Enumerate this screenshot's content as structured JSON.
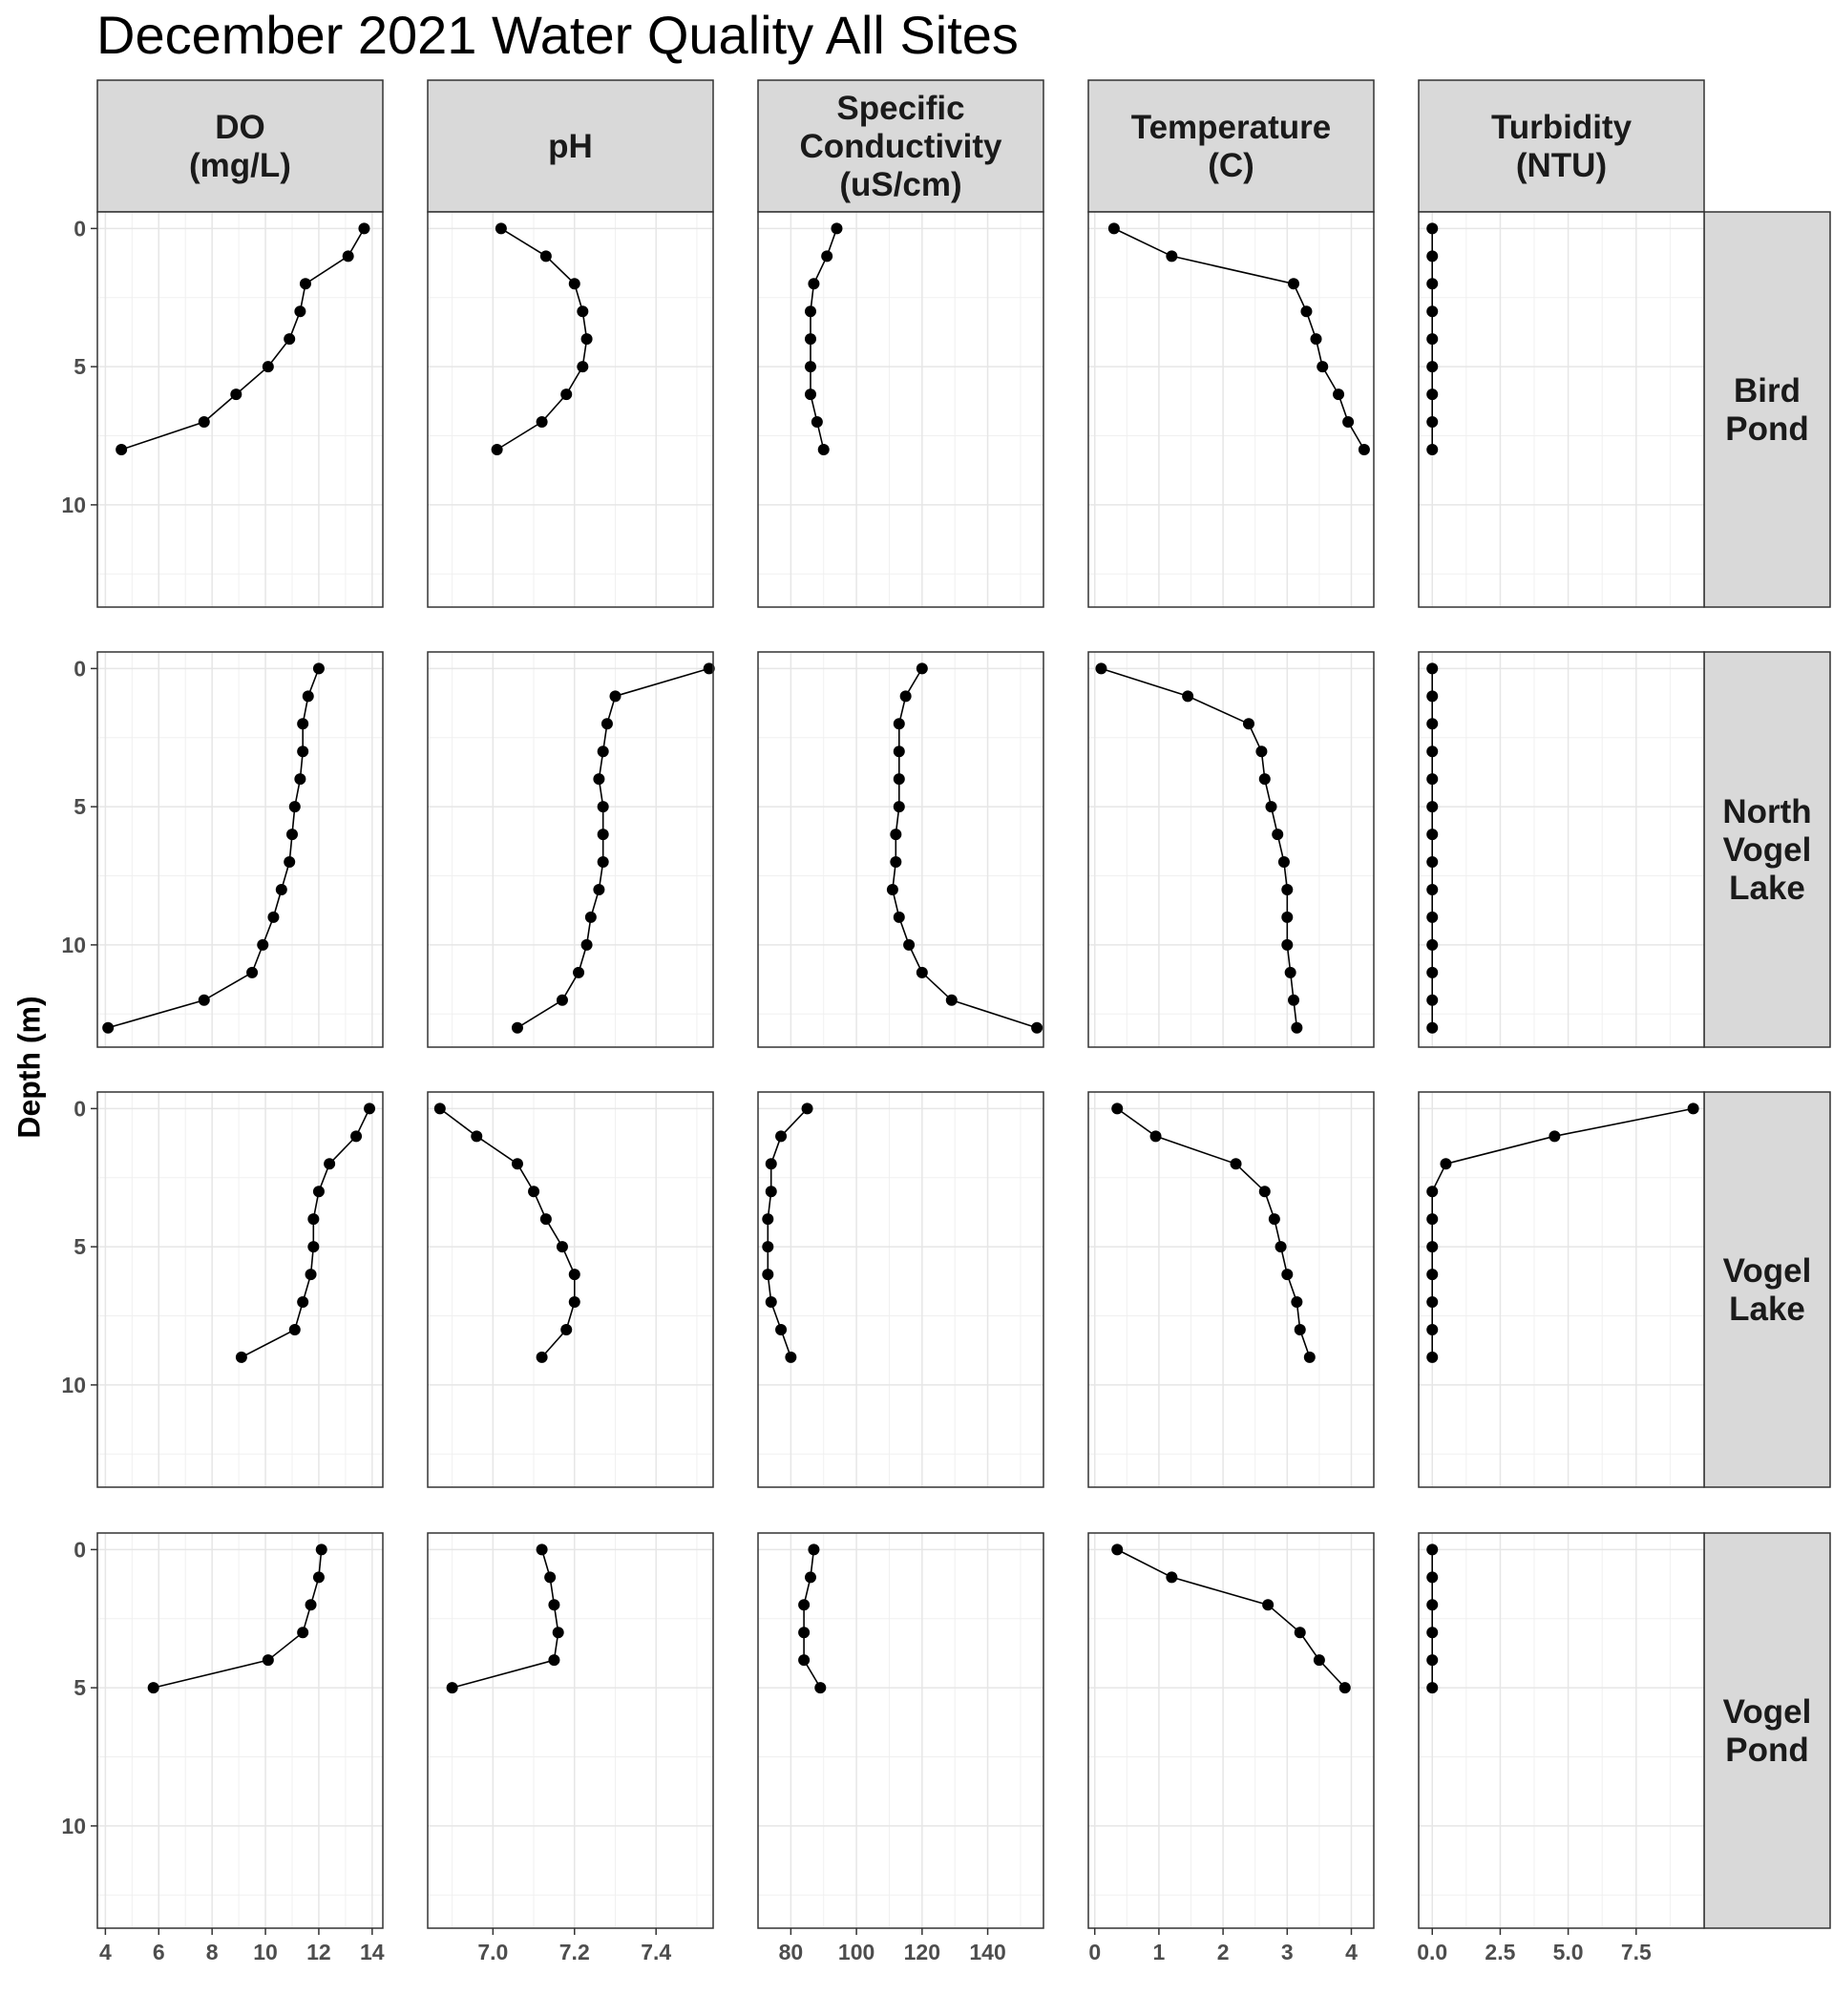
{
  "title": "December 2021 Water Quality All Sites",
  "ylabel": "Depth (m)",
  "chart_data": {
    "type": "line",
    "facet_layout": "grid",
    "markers": true,
    "grid": true,
    "y_reversed": true,
    "ylim": [
      -0.6,
      13.7
    ],
    "y_ticks": [
      0,
      5,
      10
    ],
    "columns": [
      {
        "label": "DO\n(mg/L)",
        "xlim": [
          3.7,
          14.4
        ],
        "x_ticks": [
          4,
          6,
          8,
          10,
          12,
          14
        ],
        "x_tick_labels": [
          "4",
          "6",
          "8",
          "10",
          "12",
          "14"
        ]
      },
      {
        "label": "pH",
        "xlim": [
          6.84,
          7.54
        ],
        "x_ticks": [
          7.0,
          7.2,
          7.4
        ],
        "x_tick_labels": [
          "7.0",
          "7.2",
          "7.4"
        ]
      },
      {
        "label": "Specific\nConductivity\n(uS/cm)",
        "xlim": [
          70,
          157
        ],
        "x_ticks": [
          80,
          100,
          120,
          140
        ],
        "x_tick_labels": [
          "80",
          "100",
          "120",
          "140"
        ]
      },
      {
        "label": "Temperature\n(C)",
        "xlim": [
          -0.1,
          4.35
        ],
        "x_ticks": [
          0,
          1,
          2,
          3,
          4
        ],
        "x_tick_labels": [
          "0",
          "1",
          "2",
          "3",
          "4"
        ]
      },
      {
        "label": "Turbidity\n(NTU)",
        "xlim": [
          -0.5,
          10.0
        ],
        "x_ticks": [
          0,
          2.5,
          5.0,
          7.5
        ],
        "x_tick_labels": [
          "0.0",
          "2.5",
          "5.0",
          "7.5"
        ]
      }
    ],
    "rows": [
      {
        "label": "Bird\nPond"
      },
      {
        "label": "North\nVogel\nLake"
      },
      {
        "label": "Vogel\nLake"
      },
      {
        "label": "Vogel\nPond"
      }
    ],
    "panels": [
      [
        {
          "depth": [
            0,
            1,
            2,
            3,
            4,
            5,
            6,
            7,
            8
          ],
          "x": [
            13.7,
            13.1,
            11.5,
            11.3,
            10.9,
            10.1,
            8.9,
            7.7,
            4.6
          ]
        },
        {
          "depth": [
            0,
            1,
            2,
            3,
            4,
            5,
            6,
            7,
            8
          ],
          "x": [
            7.02,
            7.13,
            7.2,
            7.22,
            7.23,
            7.22,
            7.18,
            7.12,
            7.01
          ]
        },
        {
          "depth": [
            0,
            1,
            2,
            3,
            4,
            5,
            6,
            7,
            8
          ],
          "x": [
            94,
            91,
            87,
            86,
            86,
            86,
            86,
            88,
            90
          ]
        },
        {
          "depth": [
            0,
            1,
            2,
            3,
            4,
            5,
            6,
            7,
            8
          ],
          "x": [
            0.3,
            1.2,
            3.1,
            3.3,
            3.45,
            3.55,
            3.8,
            3.95,
            4.2
          ]
        },
        {
          "depth": [
            0,
            1,
            2,
            3,
            4,
            5,
            6,
            7,
            8
          ],
          "x": [
            0,
            0,
            0,
            0,
            0,
            0,
            0,
            0,
            0
          ]
        }
      ],
      [
        {
          "depth": [
            0,
            1,
            2,
            3,
            4,
            5,
            6,
            7,
            8,
            9,
            10,
            11,
            12,
            13
          ],
          "x": [
            12.0,
            11.6,
            11.4,
            11.4,
            11.3,
            11.1,
            11.0,
            10.9,
            10.6,
            10.3,
            9.9,
            9.5,
            7.7,
            4.1
          ]
        },
        {
          "depth": [
            0,
            1,
            2,
            3,
            4,
            5,
            6,
            7,
            8,
            9,
            10,
            11,
            12,
            13
          ],
          "x": [
            7.53,
            7.3,
            7.28,
            7.27,
            7.26,
            7.27,
            7.27,
            7.27,
            7.26,
            7.24,
            7.23,
            7.21,
            7.17,
            7.06
          ]
        },
        {
          "depth": [
            0,
            1,
            2,
            3,
            4,
            5,
            6,
            7,
            8,
            9,
            10,
            11,
            12,
            13
          ],
          "x": [
            120,
            115,
            113,
            113,
            113,
            113,
            112,
            112,
            111,
            113,
            116,
            120,
            129,
            155
          ]
        },
        {
          "depth": [
            0,
            1,
            2,
            3,
            4,
            5,
            6,
            7,
            8,
            9,
            10,
            11,
            12,
            13
          ],
          "x": [
            0.1,
            1.45,
            2.4,
            2.6,
            2.65,
            2.75,
            2.85,
            2.95,
            3.0,
            3.0,
            3.0,
            3.05,
            3.1,
            3.15
          ]
        },
        {
          "depth": [
            0,
            1,
            2,
            3,
            4,
            5,
            6,
            7,
            8,
            9,
            10,
            11,
            12,
            13
          ],
          "x": [
            0,
            0,
            0,
            0,
            0,
            0,
            0,
            0,
            0,
            0,
            0,
            0,
            0,
            0
          ]
        }
      ],
      [
        {
          "depth": [
            0,
            1,
            2,
            3,
            4,
            5,
            6,
            7,
            8,
            9
          ],
          "x": [
            13.9,
            13.4,
            12.4,
            12.0,
            11.8,
            11.8,
            11.7,
            11.4,
            11.1,
            9.1
          ]
        },
        {
          "depth": [
            0,
            1,
            2,
            3,
            4,
            5,
            6,
            7,
            8,
            9
          ],
          "x": [
            6.87,
            6.96,
            7.06,
            7.1,
            7.13,
            7.17,
            7.2,
            7.2,
            7.18,
            7.12
          ]
        },
        {
          "depth": [
            0,
            1,
            2,
            3,
            4,
            5,
            6,
            7,
            8,
            9
          ],
          "x": [
            85,
            77,
            74,
            74,
            73,
            73,
            73,
            74,
            77,
            80
          ]
        },
        {
          "depth": [
            0,
            1,
            2,
            3,
            4,
            5,
            6,
            7,
            8,
            9
          ],
          "x": [
            0.35,
            0.95,
            2.2,
            2.65,
            2.8,
            2.9,
            3.0,
            3.15,
            3.2,
            3.35
          ]
        },
        {
          "depth": [
            0,
            1,
            2,
            3,
            4,
            5,
            6,
            7,
            8,
            9
          ],
          "x": [
            9.6,
            4.5,
            0.5,
            0,
            0,
            0,
            0,
            0,
            0,
            0
          ]
        }
      ],
      [
        {
          "depth": [
            0,
            1,
            2,
            3,
            4,
            5
          ],
          "x": [
            12.1,
            12.0,
            11.7,
            11.4,
            10.1,
            5.8
          ]
        },
        {
          "depth": [
            0,
            1,
            2,
            3,
            4,
            5
          ],
          "x": [
            7.12,
            7.14,
            7.15,
            7.16,
            7.15,
            6.9
          ]
        },
        {
          "depth": [
            0,
            1,
            2,
            3,
            4,
            5
          ],
          "x": [
            87,
            86,
            84,
            84,
            84,
            89
          ]
        },
        {
          "depth": [
            0,
            1,
            2,
            3,
            4,
            5
          ],
          "x": [
            0.35,
            1.2,
            2.7,
            3.2,
            3.5,
            3.9
          ]
        },
        {
          "depth": [
            0,
            1,
            2,
            3,
            4,
            5
          ],
          "x": [
            0,
            0,
            0,
            0,
            0,
            0
          ]
        }
      ]
    ]
  }
}
